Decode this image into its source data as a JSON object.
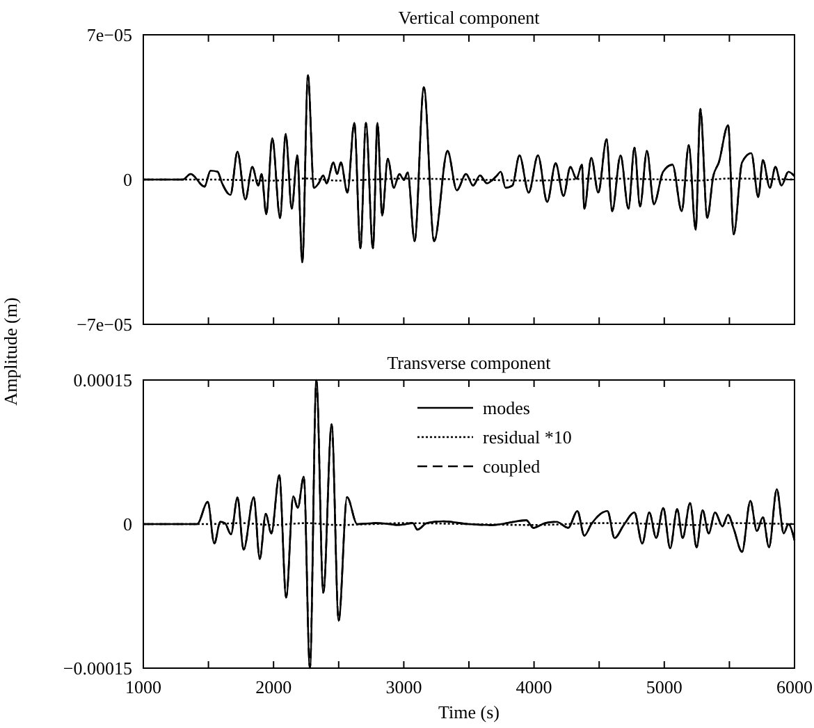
{
  "chart_data": [
    {
      "type": "line",
      "title": "Vertical component",
      "xlim": [
        1000,
        6000
      ],
      "ylim": [
        -7e-05,
        7e-05
      ],
      "tick_labels": "y",
      "legend": false,
      "grid": false,
      "xticks": [
        {
          "value": 1000,
          "label": null
        },
        {
          "value": 1500,
          "label": null
        },
        {
          "value": 2000,
          "label": null
        },
        {
          "value": 2500,
          "label": null
        },
        {
          "value": 3000,
          "label": null
        },
        {
          "value": 3500,
          "label": null
        },
        {
          "value": 4000,
          "label": null
        },
        {
          "value": 4500,
          "label": null
        },
        {
          "value": 5000,
          "label": null
        },
        {
          "value": 5500,
          "label": null
        },
        {
          "value": 6000,
          "label": null
        }
      ],
      "yticks": [
        {
          "value": 7e-05,
          "label": "7e−05"
        },
        0,
        {
          "value": -7e-05,
          "label": "−7e−05"
        }
      ],
      "series": [
        {
          "color": "#000000",
          "line_style": "solid",
          "x": [
            1000,
            1303,
            1363,
            1470,
            1516,
            1570,
            1605,
            1669,
            1723,
            1783,
            1837,
            1883,
            1908,
            1944,
            1990,
            2050,
            2093,
            2140,
            2182,
            2221,
            2264,
            2310,
            2346,
            2382,
            2407,
            2460,
            2488,
            2517,
            2567,
            2620,
            2667,
            2709,
            2763,
            2798,
            2834,
            2877,
            2923,
            2966,
            3001,
            3030,
            3083,
            3154,
            3233,
            3336,
            3407,
            3478,
            3532,
            3585,
            3638,
            3710,
            3745,
            3781,
            3834,
            3888,
            3959,
            4030,
            4101,
            4166,
            4226,
            4279,
            4326,
            4368,
            4386,
            4440,
            4493,
            4557,
            4600,
            4664,
            4725,
            4771,
            4814,
            4867,
            4920,
            4991,
            5063,
            5134,
            5188,
            5241,
            5277,
            5330,
            5376,
            5419,
            5490,
            5533,
            5597,
            5668,
            5722,
            5757,
            5811,
            5853,
            5900,
            5953,
            6000
          ],
          "values": [
            0,
            0,
            2.7e-06,
            -3.4e-06,
            4.3e-06,
            3.8e-06,
            -1.8e-06,
            -7.4e-06,
            1.35e-05,
            -9.7e-06,
            6.1e-06,
            -2.9e-06,
            2.7e-06,
            -1.68e-05,
            2e-05,
            -1.86e-05,
            2.2e-05,
            -1.41e-05,
            1.17e-05,
            -4e-05,
            5.05e-05,
            -4e-06,
            -1.8e-06,
            2e-06,
            -1.8e-06,
            8.3e-06,
            2.7e-06,
            8.3e-06,
            -6.3e-06,
            2.74e-05,
            -3.32e-05,
            2.74e-05,
            -3.32e-05,
            2.74e-05,
            -1.75e-05,
            1.01e-05,
            -4e-06,
            2.7e-06,
            -2e-07,
            3.4e-06,
            -2.98e-05,
            4.47e-05,
            -2.98e-05,
            1.39e-05,
            -5.2e-06,
            2.7e-06,
            -2.9e-06,
            2e-06,
            -1.8e-06,
            1.6e-06,
            3.8e-06,
            -4e-06,
            -2.9e-06,
            1.17e-05,
            -6.3e-06,
            1.17e-05,
            -1.08e-05,
            7.9e-06,
            -7.9e-06,
            6.1e-06,
            4e-07,
            7.2e-06,
            -1.41e-05,
            1.05e-05,
            -6.3e-06,
            1.95e-05,
            -1.53e-05,
            1.17e-05,
            -1.41e-05,
            1.55e-05,
            -1.3e-05,
            1.39e-05,
            -1.19e-05,
            3.8e-06,
            7.2e-06,
            -1.53e-05,
            1.66e-05,
            -2.42e-05,
            3.41e-05,
            -1.86e-05,
            1.6e-06,
            8.3e-06,
            2.63e-05,
            -2.65e-05,
            8.3e-06,
            1.28e-05,
            -8.5e-06,
            9.4e-06,
            -4e-06,
            6.1e-06,
            -2.9e-06,
            3.8e-06,
            1.6e-06
          ]
        },
        {
          "color": "#000000",
          "line_style": "dotted",
          "x": [
            1000,
            1500,
            2000,
            2250,
            2500,
            2750,
            3000,
            3500,
            4000,
            4500,
            5000,
            5250,
            5500,
            6000
          ],
          "values": [
            0,
            0,
            -5e-07,
            5e-07,
            -5e-07,
            0,
            5e-07,
            0,
            -5e-07,
            5e-07,
            0,
            -5e-07,
            5e-07,
            0
          ]
        },
        {
          "color": "#000000",
          "line_style": "dashed",
          "x": [
            1000,
            1303,
            1363,
            1470,
            1516,
            1570,
            1605,
            1669,
            1723,
            1783,
            1837,
            1883,
            1908,
            1944,
            1990,
            2050,
            2093,
            2140,
            2182,
            2221,
            2264,
            2310,
            2346,
            2382,
            2407,
            2460,
            2488,
            2517,
            2567,
            2620,
            2667,
            2709,
            2763,
            2798,
            2834,
            2877,
            2923,
            2966,
            3001,
            3030,
            3083,
            3154,
            3233,
            3336,
            3407,
            3478,
            3532,
            3585,
            3638,
            3710,
            3745,
            3781,
            3834,
            3888,
            3959,
            4030,
            4101,
            4166,
            4226,
            4279,
            4326,
            4368,
            4386,
            4440,
            4493,
            4557,
            4600,
            4664,
            4725,
            4771,
            4814,
            4867,
            4920,
            4991,
            5063,
            5134,
            5188,
            5241,
            5277,
            5330,
            5376,
            5419,
            5490,
            5533,
            5597,
            5668,
            5722,
            5757,
            5811,
            5853,
            5900,
            5953,
            6000
          ],
          "values": [
            0,
            0,
            2.7e-06,
            -3.4e-06,
            4.3e-06,
            3.8e-06,
            -1.8e-06,
            -7.4e-06,
            1.35e-05,
            -9.7e-06,
            6.1e-06,
            -2.9e-06,
            2.7e-06,
            -1.68e-05,
            2e-05,
            -1.86e-05,
            2.2e-05,
            -1.41e-05,
            1.17e-05,
            -4e-05,
            5.05e-05,
            -4e-06,
            -1.8e-06,
            2e-06,
            -1.8e-06,
            8.3e-06,
            2.7e-06,
            8.3e-06,
            -6.3e-06,
            2.74e-05,
            -3.32e-05,
            2.74e-05,
            -3.32e-05,
            2.74e-05,
            -1.75e-05,
            1.01e-05,
            -4e-06,
            2.7e-06,
            -2e-07,
            3.4e-06,
            -2.98e-05,
            4.47e-05,
            -2.98e-05,
            1.39e-05,
            -5.2e-06,
            2.7e-06,
            -2.9e-06,
            2e-06,
            -1.8e-06,
            1.6e-06,
            3.8e-06,
            -4e-06,
            -2.9e-06,
            1.17e-05,
            -6.3e-06,
            1.17e-05,
            -1.08e-05,
            7.9e-06,
            -7.9e-06,
            6.1e-06,
            4e-07,
            7.2e-06,
            -1.41e-05,
            1.05e-05,
            -6.3e-06,
            1.95e-05,
            -1.53e-05,
            1.17e-05,
            -1.41e-05,
            1.55e-05,
            -1.3e-05,
            1.39e-05,
            -1.19e-05,
            3.8e-06,
            7.2e-06,
            -1.53e-05,
            1.66e-05,
            -2.42e-05,
            3.41e-05,
            -1.86e-05,
            1.6e-06,
            8.3e-06,
            2.63e-05,
            -2.65e-05,
            8.3e-06,
            1.28e-05,
            -8.5e-06,
            9.4e-06,
            -4e-06,
            6.1e-06,
            -2.9e-06,
            3.8e-06,
            1.6e-06
          ]
        }
      ]
    },
    {
      "type": "line",
      "title": "Transverse component",
      "xlabel": "Time (s)",
      "ylabel": "Amplitude (m)",
      "xlim": [
        1000,
        6000
      ],
      "ylim": [
        -0.00015,
        0.00015
      ],
      "legend": "top right",
      "grid": false,
      "xticks": [
        {
          "value": 1000,
          "label": "1000"
        },
        {
          "value": 1500,
          "label": null
        },
        {
          "value": 2000,
          "label": "2000"
        },
        {
          "value": 2500,
          "label": null
        },
        {
          "value": 3000,
          "label": "3000"
        },
        {
          "value": 3500,
          "label": null
        },
        {
          "value": 4000,
          "label": "4000"
        },
        {
          "value": 4500,
          "label": null
        },
        {
          "value": 5000,
          "label": "5000"
        },
        {
          "value": 5500,
          "label": null
        },
        {
          "value": 6000,
          "label": "6000"
        }
      ],
      "yticks": [
        {
          "value": 0.00015,
          "label": "0.00015"
        },
        0,
        {
          "value": -0.00015,
          "label": "−0.00015"
        }
      ],
      "series": [
        {
          "name": "modes",
          "color": "#000000",
          "line_style": "solid",
          "x": [
            1000,
            1413,
            1495,
            1545,
            1591,
            1627,
            1673,
            1723,
            1770,
            1848,
            1894,
            1940,
            1983,
            2044,
            2097,
            2151,
            2186,
            2232,
            2279,
            2329,
            2382,
            2446,
            2500,
            2564,
            2642,
            2784,
            2891,
            2962,
            3069,
            3105,
            3176,
            3301,
            3496,
            3674,
            3941,
            3995,
            4084,
            4173,
            4262,
            4333,
            4386,
            4440,
            4564,
            4618,
            4689,
            4771,
            4831,
            4885,
            4938,
            4992,
            5045,
            5099,
            5141,
            5198,
            5248,
            5294,
            5341,
            5390,
            5447,
            5490,
            5533,
            5597,
            5661,
            5711,
            5757,
            5804,
            5864,
            5917,
            5953,
            6000
          ],
          "values": [
            0,
            0,
            2.32e-05,
            -2.03e-05,
            2.4e-06,
            1e-06,
            -1.06e-05,
            2.76e-05,
            -2.66e-05,
            2.81e-05,
            -3.63e-05,
            1.06e-05,
            -9.7e-06,
            5.08e-05,
            -7.65e-05,
            2.9e-05,
            1.69e-05,
            4.94e-05,
            -0.00015,
            0.00015,
            -7.16e-05,
            0.000104,
            -0.0001007,
            2.81e-05,
            0,
            1e-06,
            0,
            -1e-06,
            1e-06,
            -5.8e-06,
            1e-06,
            2.9e-06,
            0,
            -1e-06,
            3.9e-06,
            -3.9e-06,
            1e-06,
            2.4e-06,
            -3.9e-06,
            1.36e-05,
            -1.21e-05,
            0,
            1.36e-05,
            -1.45e-05,
            -1e-06,
            1.21e-05,
            -2.03e-05,
            1.21e-05,
            -1.45e-05,
            1.69e-05,
            -2.52e-05,
            1.55e-05,
            -1.45e-05,
            2.18e-05,
            -2.42e-05,
            1.45e-05,
            -9.7e-06,
            1.21e-05,
            -2.4e-06,
            9.7e-06,
            -4.8e-06,
            -2.9e-05,
            2.42e-05,
            -7.3e-06,
            7.3e-06,
            -2.42e-05,
            3.63e-05,
            -9.7e-06,
            0,
            -1.69e-05
          ]
        },
        {
          "name": "residual *10",
          "color": "#000000",
          "line_style": "dotted",
          "x": [
            1000,
            1500,
            1750,
            2000,
            2250,
            2500,
            2750,
            3000,
            3500,
            4000,
            4500,
            5000,
            5250,
            5500,
            6000
          ],
          "values": [
            0,
            0,
            1e-06,
            -1e-06,
            1e-06,
            -1e-06,
            0,
            1e-06,
            0,
            -1e-06,
            1e-06,
            0,
            -1e-06,
            1e-06,
            0
          ]
        },
        {
          "name": "coupled",
          "color": "#000000",
          "line_style": "dashed",
          "x": [
            1000,
            1413,
            1495,
            1545,
            1591,
            1627,
            1673,
            1723,
            1770,
            1848,
            1894,
            1940,
            1983,
            2044,
            2097,
            2151,
            2186,
            2232,
            2279,
            2329,
            2382,
            2446,
            2500,
            2564,
            2642,
            2784,
            2891,
            2962,
            3069,
            3105,
            3176,
            3301,
            3496,
            3674,
            3941,
            3995,
            4084,
            4173,
            4262,
            4333,
            4386,
            4440,
            4564,
            4618,
            4689,
            4771,
            4831,
            4885,
            4938,
            4992,
            5045,
            5099,
            5141,
            5198,
            5248,
            5294,
            5341,
            5390,
            5447,
            5490,
            5533,
            5597,
            5661,
            5711,
            5757,
            5804,
            5864,
            5917,
            5953,
            6000
          ],
          "values": [
            0,
            0,
            2.32e-05,
            -2.03e-05,
            2.4e-06,
            1e-06,
            -1.06e-05,
            2.76e-05,
            -2.66e-05,
            2.81e-05,
            -3.63e-05,
            1.06e-05,
            -9.7e-06,
            5.08e-05,
            -7.65e-05,
            2.9e-05,
            1.69e-05,
            4.94e-05,
            -0.00015,
            0.00015,
            -7.16e-05,
            0.000104,
            -0.0001007,
            2.81e-05,
            0,
            1e-06,
            0,
            -1e-06,
            1e-06,
            -5.8e-06,
            1e-06,
            2.9e-06,
            0,
            -1e-06,
            3.9e-06,
            -3.9e-06,
            1e-06,
            2.4e-06,
            -3.9e-06,
            1.36e-05,
            -1.21e-05,
            0,
            1.36e-05,
            -1.45e-05,
            -1e-06,
            1.21e-05,
            -2.03e-05,
            1.21e-05,
            -1.45e-05,
            1.69e-05,
            -2.52e-05,
            1.55e-05,
            -1.45e-05,
            2.18e-05,
            -2.42e-05,
            1.45e-05,
            -9.7e-06,
            1.21e-05,
            -2.4e-06,
            9.7e-06,
            -4.8e-06,
            -2.9e-05,
            2.42e-05,
            -7.3e-06,
            7.3e-06,
            -2.42e-05,
            3.63e-05,
            -9.7e-06,
            0,
            -1.69e-05
          ]
        }
      ]
    }
  ]
}
